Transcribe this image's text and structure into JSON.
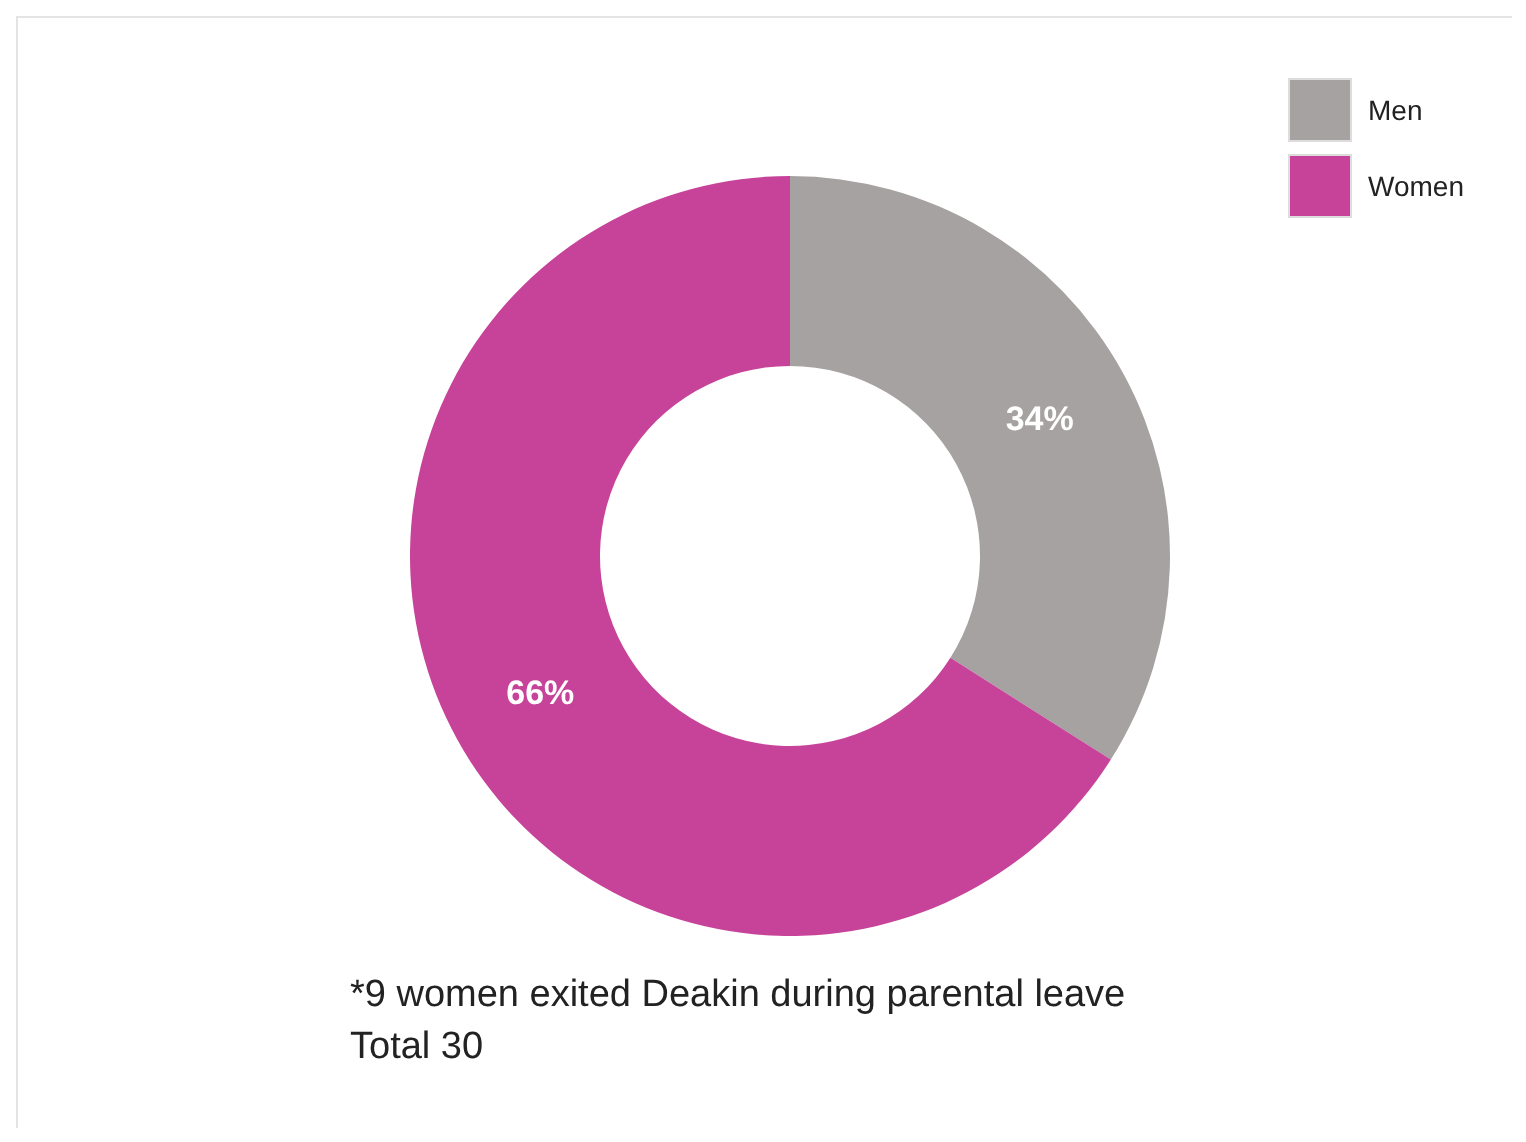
{
  "chart_data": {
    "type": "donut",
    "categories": [
      "Men",
      "Women"
    ],
    "values": [
      34,
      66
    ],
    "colors": [
      "#a6a2a1",
      "#c7439a"
    ],
    "value_labels": [
      "34%",
      "66%"
    ],
    "legend": "top right",
    "annotations": [
      "*9 women exited Deakin during parental leave",
      "Total 30"
    ]
  }
}
